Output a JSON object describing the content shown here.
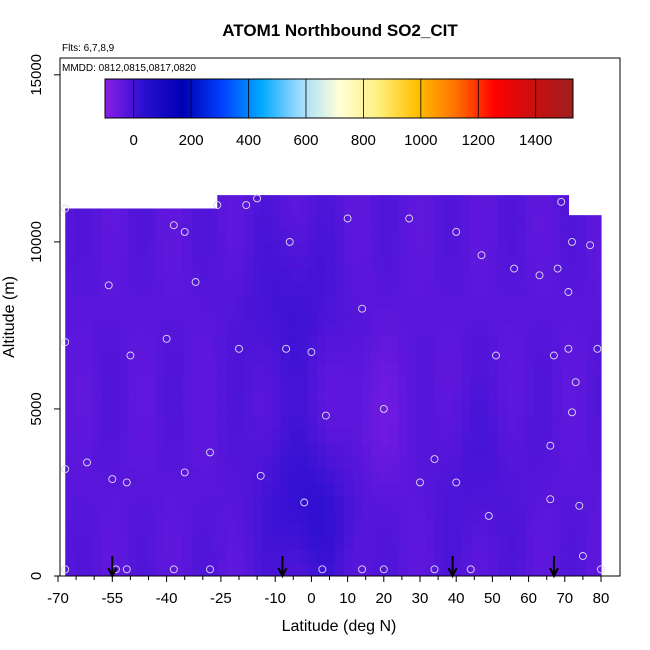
{
  "chart_data": {
    "type": "heatmap",
    "title": "ATOM1 Northbound SO2_CIT",
    "flights_note": "Flts: 6,7,8,9",
    "dates_note": "MMDD: 0812,0815,0817,0820",
    "xlabel": "Latitude (deg N)",
    "ylabel": "Altitude (m)",
    "xlim": [
      -70,
      80
    ],
    "ylim": [
      0,
      17000
    ],
    "x_ticks": [
      -70,
      -55,
      -40,
      -25,
      -10,
      0,
      10,
      20,
      30,
      40,
      50,
      60,
      70,
      80
    ],
    "y_ticks": [
      0,
      5000,
      10000,
      15000
    ],
    "colorbar": {
      "range": [
        -100,
        1530
      ],
      "ticks": [
        0,
        200,
        400,
        600,
        800,
        1000,
        1200,
        1400
      ],
      "colors": [
        "#8a1ee6",
        "#2a0fd0",
        "#0000b4",
        "#0040ff",
        "#00a8ff",
        "#9fdcff",
        "#ffffd8",
        "#fff080",
        "#ffc000",
        "#ff7000",
        "#ff0000",
        "#c81010",
        "#a01e1e"
      ]
    },
    "grid": false,
    "coverage": [
      {
        "lat_range": [
          -68,
          -26
        ],
        "alt_range": [
          0,
          11000
        ]
      },
      {
        "lat_range": [
          -26,
          71
        ],
        "alt_range": [
          0,
          11400
        ]
      },
      {
        "lat_range": [
          71,
          80
        ],
        "alt_range": [
          0,
          10800
        ]
      }
    ],
    "field": {
      "background_value": -30,
      "features": [
        {
          "lat": 0,
          "alt": 2200,
          "value": 30
        },
        {
          "lat": -5,
          "alt": 8000,
          "value": 5
        },
        {
          "lat": 15,
          "alt": 4500,
          "value": -60
        },
        {
          "lat": 45,
          "alt": 3000,
          "value": -10
        }
      ]
    },
    "points": [
      {
        "lat": -68,
        "alt": 11000
      },
      {
        "lat": -68,
        "alt": 7000
      },
      {
        "lat": -68,
        "alt": 3200
      },
      {
        "lat": -68,
        "alt": 200
      },
      {
        "lat": -62,
        "alt": 3400
      },
      {
        "lat": -56,
        "alt": 8700
      },
      {
        "lat": -55,
        "alt": 2900
      },
      {
        "lat": -54,
        "alt": 200
      },
      {
        "lat": -51,
        "alt": 2800
      },
      {
        "lat": -50,
        "alt": 6600
      },
      {
        "lat": -51,
        "alt": 200
      },
      {
        "lat": -40,
        "alt": 7100
      },
      {
        "lat": -38,
        "alt": 10500
      },
      {
        "lat": -35,
        "alt": 10300
      },
      {
        "lat": -35,
        "alt": 3100
      },
      {
        "lat": -32,
        "alt": 8800
      },
      {
        "lat": -26,
        "alt": 11100
      },
      {
        "lat": -28,
        "alt": 3700
      },
      {
        "lat": -28,
        "alt": 200
      },
      {
        "lat": -38,
        "alt": 200
      },
      {
        "lat": -18,
        "alt": 11100
      },
      {
        "lat": -20,
        "alt": 6800
      },
      {
        "lat": -15,
        "alt": 11300
      },
      {
        "lat": -14,
        "alt": 3000
      },
      {
        "lat": -6,
        "alt": 10000
      },
      {
        "lat": -7,
        "alt": 6800
      },
      {
        "lat": -2,
        "alt": 2200
      },
      {
        "lat": 0,
        "alt": 6700
      },
      {
        "lat": 4,
        "alt": 4800
      },
      {
        "lat": 3,
        "alt": 200
      },
      {
        "lat": 10,
        "alt": 10700
      },
      {
        "lat": 14,
        "alt": 200
      },
      {
        "lat": 14,
        "alt": 8000
      },
      {
        "lat": 20,
        "alt": 5000
      },
      {
        "lat": 20,
        "alt": 200
      },
      {
        "lat": 27,
        "alt": 10700
      },
      {
        "lat": 30,
        "alt": 2800
      },
      {
        "lat": 34,
        "alt": 3500
      },
      {
        "lat": 34,
        "alt": 200
      },
      {
        "lat": 40,
        "alt": 10300
      },
      {
        "lat": 40,
        "alt": 2800
      },
      {
        "lat": 44,
        "alt": 200
      },
      {
        "lat": 47,
        "alt": 9600
      },
      {
        "lat": 49,
        "alt": 1800
      },
      {
        "lat": 51,
        "alt": 6600
      },
      {
        "lat": 56,
        "alt": 9200
      },
      {
        "lat": 63,
        "alt": 9000
      },
      {
        "lat": 66,
        "alt": 3900
      },
      {
        "lat": 66,
        "alt": 2300
      },
      {
        "lat": 67,
        "alt": 6600
      },
      {
        "lat": 68,
        "alt": 9200
      },
      {
        "lat": 69,
        "alt": 11200
      },
      {
        "lat": 71,
        "alt": 6800
      },
      {
        "lat": 71,
        "alt": 8500
      },
      {
        "lat": 72,
        "alt": 10000
      },
      {
        "lat": 72,
        "alt": 4900
      },
      {
        "lat": 73,
        "alt": 5800
      },
      {
        "lat": 74,
        "alt": 2100
      },
      {
        "lat": 75,
        "alt": 600
      },
      {
        "lat": 77,
        "alt": 9900
      },
      {
        "lat": 79,
        "alt": 6800
      },
      {
        "lat": 80,
        "alt": 200
      }
    ],
    "flight_markers_lat": [
      -55,
      -8,
      39,
      67
    ]
  }
}
